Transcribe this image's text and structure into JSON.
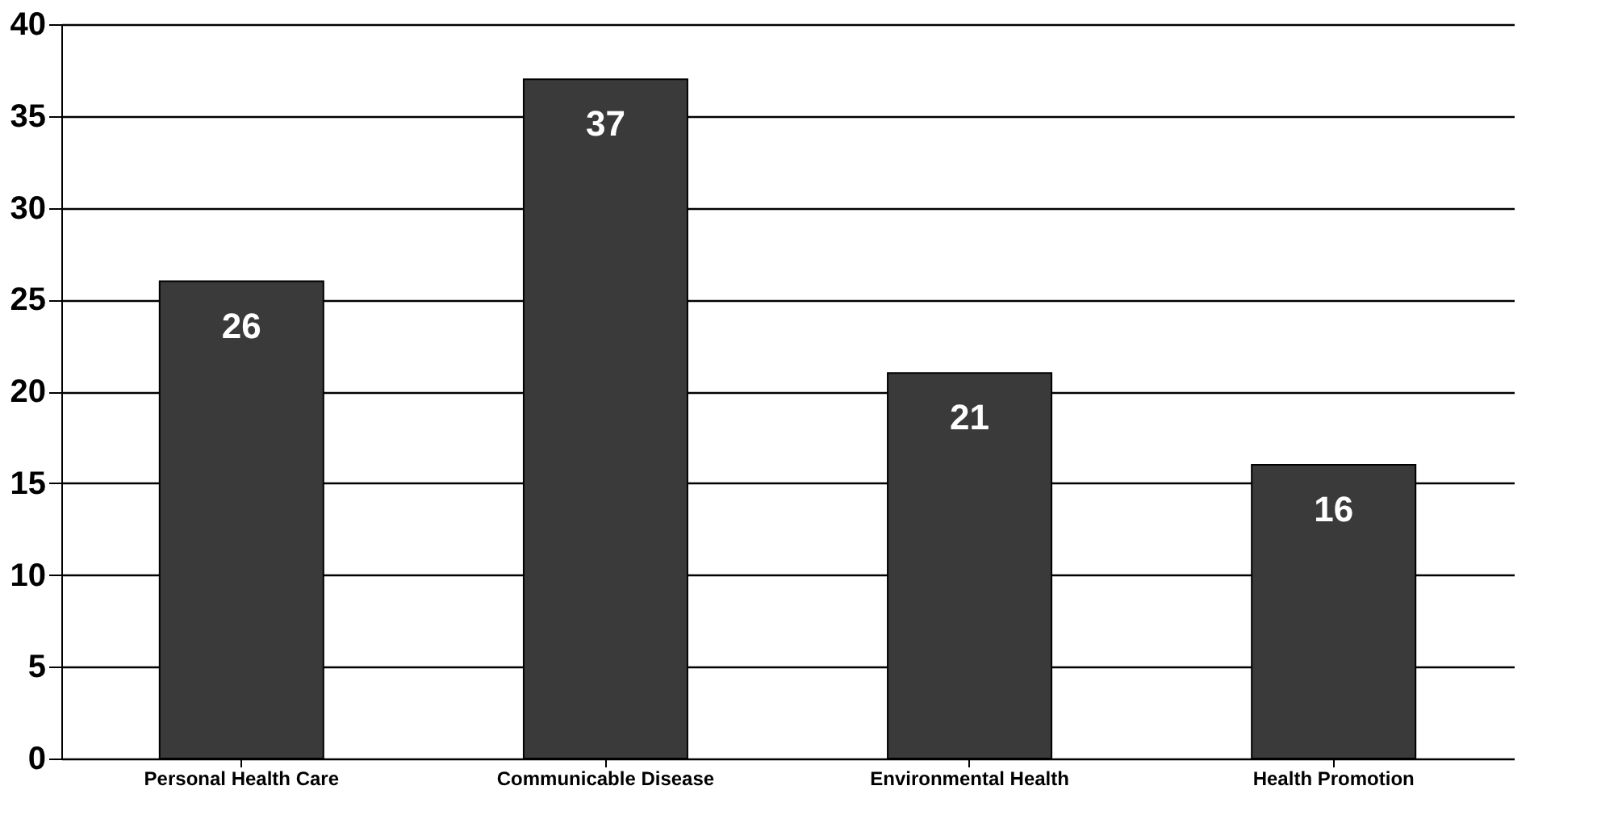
{
  "chart_data": {
    "type": "bar",
    "categories": [
      "Personal Health Care",
      "Communicable Disease",
      "Environmental Health",
      "Health Promotion"
    ],
    "values": [
      26,
      37,
      21,
      16
    ],
    "color": "#3a3a3a",
    "ylim": [
      0,
      40
    ],
    "yticks": [
      0,
      5,
      10,
      15,
      20,
      25,
      30,
      35,
      40
    ],
    "grid": "y",
    "data_labels": true
  }
}
